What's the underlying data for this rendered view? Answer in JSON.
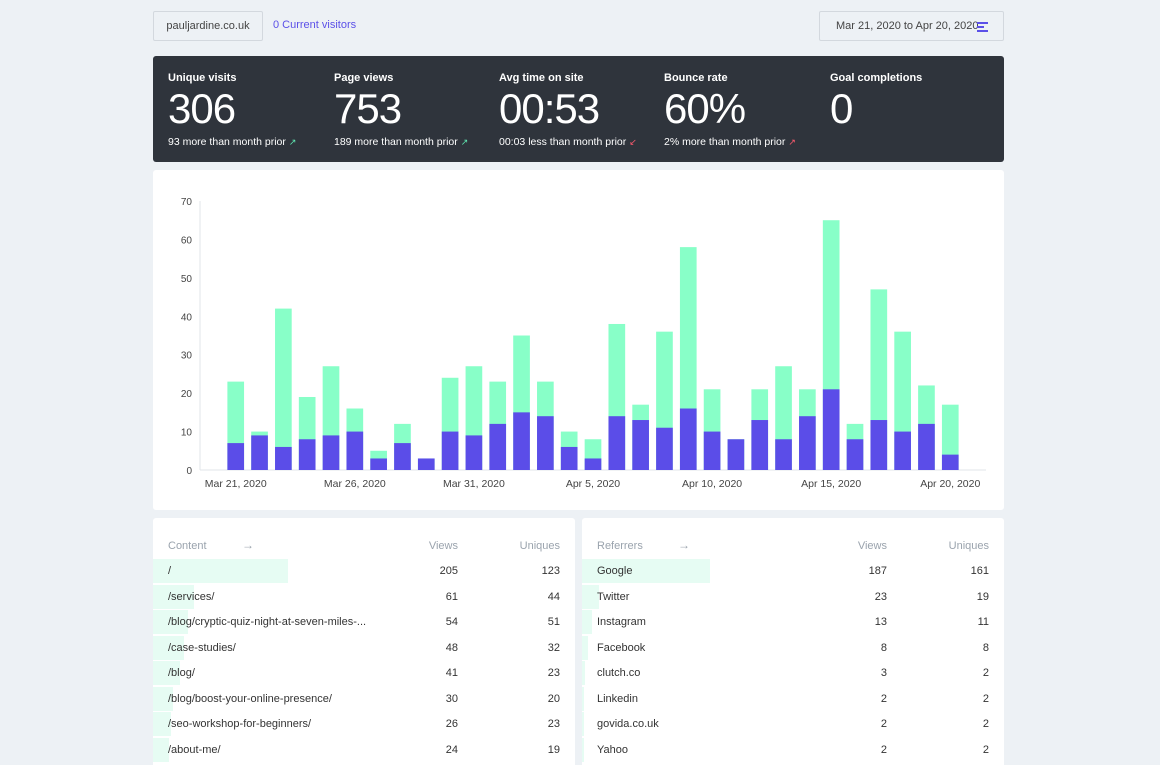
{
  "topbar": {
    "site": "pauljardine.co.uk",
    "visitors": "0 Current visitors",
    "date_range": "Mar 21, 2020 to Apr 20, 2020",
    "date_icon": "menu-lines-icon"
  },
  "stats": [
    {
      "label": "Unique visits",
      "value": "306",
      "change": "93 more than month prior",
      "trend": "up"
    },
    {
      "label": "Page views",
      "value": "753",
      "change": "189 more than month prior",
      "trend": "up"
    },
    {
      "label": "Avg time on site",
      "value": "00:53",
      "change": "00:03 less than month prior",
      "trend": "down"
    },
    {
      "label": "Bounce rate",
      "value": "60%",
      "change": "2% more than month prior",
      "trend": "down"
    },
    {
      "label": "Goal completions",
      "value": "0",
      "change": "",
      "trend": ""
    }
  ],
  "chart_data": {
    "type": "bar",
    "stacked": "overlay",
    "y_ticks": [
      "0",
      "10",
      "20",
      "30",
      "40",
      "50",
      "60",
      "70"
    ],
    "ylim": [
      0,
      70
    ],
    "x_tick_labels": [
      {
        "label": "Mar 21, 2020",
        "index": 1
      },
      {
        "label": "Mar 26, 2020",
        "index": 6
      },
      {
        "label": "Mar 31, 2020",
        "index": 11
      },
      {
        "label": "Apr 5, 2020",
        "index": 16
      },
      {
        "label": "Apr 10, 2020",
        "index": 21
      },
      {
        "label": "Apr 15, 2020",
        "index": 26
      },
      {
        "label": "Apr 20, 2020",
        "index": 31
      }
    ],
    "categories": [
      "Mar 20",
      "Mar 21",
      "Mar 22",
      "Mar 23",
      "Mar 24",
      "Mar 25",
      "Mar 26",
      "Mar 27",
      "Mar 28",
      "Mar 29",
      "Mar 30",
      "Mar 31",
      "Apr 1",
      "Apr 2",
      "Apr 3",
      "Apr 4",
      "Apr 5",
      "Apr 6",
      "Apr 7",
      "Apr 8",
      "Apr 9",
      "Apr 10",
      "Apr 11",
      "Apr 12",
      "Apr 13",
      "Apr 14",
      "Apr 15",
      "Apr 16",
      "Apr 17",
      "Apr 18",
      "Apr 19",
      "Apr 20",
      "Apr 21"
    ],
    "series": [
      {
        "color": "#88ffc8",
        "values": [
          0,
          23,
          10,
          42,
          19,
          27,
          16,
          5,
          12,
          3,
          24,
          27,
          23,
          35,
          23,
          10,
          8,
          38,
          17,
          36,
          58,
          21,
          8,
          21,
          27,
          21,
          65,
          12,
          47,
          36,
          22,
          17,
          0
        ]
      },
      {
        "color": "#5b4de8",
        "values": [
          0,
          7,
          9,
          6,
          8,
          9,
          10,
          3,
          7,
          3,
          10,
          9,
          12,
          15,
          14,
          6,
          3,
          14,
          13,
          11,
          16,
          10,
          8,
          13,
          8,
          14,
          21,
          8,
          13,
          10,
          12,
          4,
          0
        ]
      }
    ]
  },
  "content_table": {
    "title": "Content",
    "col_views": "Views",
    "col_uniques": "Uniques",
    "rows": [
      {
        "name": "/",
        "views": "205",
        "uniques": "123",
        "frac": 1.0
      },
      {
        "name": "/services/",
        "views": "61",
        "uniques": "44",
        "frac": 0.3
      },
      {
        "name": "/blog/cryptic-quiz-night-at-seven-miles-...",
        "views": "54",
        "uniques": "51",
        "frac": 0.26
      },
      {
        "name": "/case-studies/",
        "views": "48",
        "uniques": "32",
        "frac": 0.23
      },
      {
        "name": "/blog/",
        "views": "41",
        "uniques": "23",
        "frac": 0.2
      },
      {
        "name": "/blog/boost-your-online-presence/",
        "views": "30",
        "uniques": "20",
        "frac": 0.15
      },
      {
        "name": "/seo-workshop-for-beginners/",
        "views": "26",
        "uniques": "23",
        "frac": 0.13
      },
      {
        "name": "/about-me/",
        "views": "24",
        "uniques": "19",
        "frac": 0.12
      }
    ]
  },
  "referrers_table": {
    "title": "Referrers",
    "col_views": "Views",
    "col_uniques": "Uniques",
    "rows": [
      {
        "name": "Google",
        "views": "187",
        "uniques": "161",
        "frac": 1.0
      },
      {
        "name": "Twitter",
        "views": "23",
        "uniques": "19",
        "frac": 0.13
      },
      {
        "name": "Instagram",
        "views": "13",
        "uniques": "11",
        "frac": 0.08
      },
      {
        "name": "Facebook",
        "views": "8",
        "uniques": "8",
        "frac": 0.05
      },
      {
        "name": "clutch.co",
        "views": "3",
        "uniques": "2",
        "frac": 0.02
      },
      {
        "name": "Linkedin",
        "views": "2",
        "uniques": "2",
        "frac": 0.015
      },
      {
        "name": "govida.co.uk",
        "views": "2",
        "uniques": "2",
        "frac": 0.015
      },
      {
        "name": "Yahoo",
        "views": "2",
        "uniques": "2",
        "frac": 0.015
      }
    ]
  }
}
